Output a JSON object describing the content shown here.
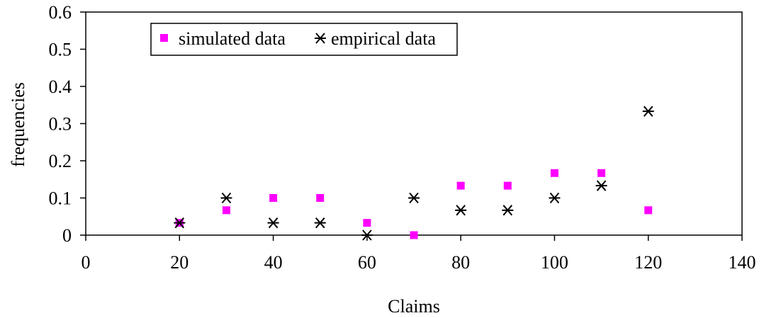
{
  "chart_data": {
    "type": "scatter",
    "title": "",
    "xlabel": "Claims",
    "ylabel": "frequencies",
    "xlim": [
      0,
      140
    ],
    "ylim": [
      0,
      0.6
    ],
    "xticks": [
      0,
      20,
      40,
      60,
      80,
      100,
      120,
      140
    ],
    "yticks": [
      0,
      0.1,
      0.2,
      0.3,
      0.4,
      0.5,
      0.6
    ],
    "xtick_labels": [
      "0",
      "20",
      "40",
      "60",
      "80",
      "100",
      "120",
      "140"
    ],
    "ytick_labels": [
      "0",
      "0.1",
      "0.2",
      "0.3",
      "0.4",
      "0.5",
      "0.6"
    ],
    "grid": false,
    "legend_position": "top-left",
    "series": [
      {
        "name": "simulated data",
        "marker": "square",
        "color": "#ff00ff",
        "x": [
          20,
          30,
          40,
          50,
          60,
          70,
          80,
          90,
          100,
          110,
          120
        ],
        "y": [
          0.033,
          0.067,
          0.1,
          0.1,
          0.033,
          0.0,
          0.133,
          0.133,
          0.167,
          0.167,
          0.067
        ]
      },
      {
        "name": "empirical data",
        "marker": "asterisk",
        "color": "#000000",
        "x": [
          20,
          30,
          40,
          50,
          60,
          70,
          80,
          90,
          100,
          110,
          120
        ],
        "y": [
          0.033,
          0.1,
          0.033,
          0.033,
          0.0,
          0.1,
          0.067,
          0.067,
          0.1,
          0.133,
          0.333
        ]
      }
    ]
  }
}
